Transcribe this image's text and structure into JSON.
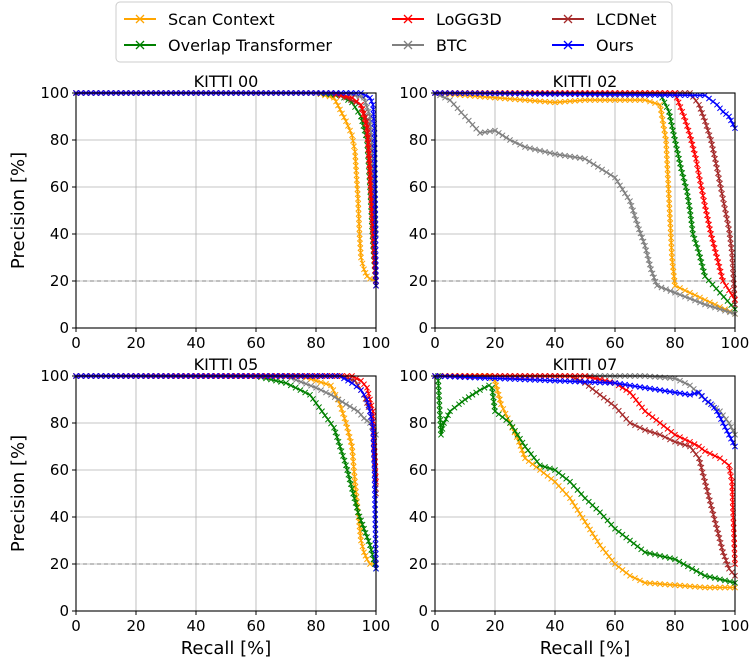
{
  "legend": [
    {
      "name": "Scan Context",
      "color": "#ffa500"
    },
    {
      "name": "Overlap Transformer",
      "color": "#008000"
    },
    {
      "name": "LoGG3D",
      "color": "#ff0000"
    },
    {
      "name": "BTC",
      "color": "#808080"
    },
    {
      "name": "LCDNet",
      "color": "#a52a2a"
    },
    {
      "name": "Ours",
      "color": "#0000ff"
    }
  ],
  "chart_data": [
    {
      "type": "line",
      "title": "KITTI 00",
      "xlabel": "",
      "ylabel": "Precision [%]",
      "xlim": [
        0,
        100
      ],
      "ylim": [
        0,
        100
      ],
      "xticks": [
        "0",
        "20",
        "40",
        "60",
        "80",
        "100"
      ],
      "yticks": [
        "0",
        "20",
        "40",
        "60",
        "80",
        "100"
      ],
      "grid": true,
      "series": [
        {
          "name": "Scan Context",
          "x": [
            0,
            80,
            86,
            88,
            90,
            92,
            93,
            93.5,
            94,
            94.5,
            95,
            96,
            97,
            98,
            100
          ],
          "y": [
            100,
            100,
            98,
            93,
            88,
            82,
            75,
            65,
            55,
            40,
            30,
            25,
            22,
            21,
            20
          ]
        },
        {
          "name": "Overlap Transformer",
          "x": [
            0,
            80,
            88,
            92,
            95,
            97,
            98,
            99,
            100
          ],
          "y": [
            100,
            100,
            99,
            96,
            90,
            80,
            60,
            35,
            18
          ]
        },
        {
          "name": "LoGG3D",
          "x": [
            0,
            85,
            92,
            95,
            97,
            98,
            99,
            100
          ],
          "y": [
            100,
            100,
            98,
            95,
            85,
            65,
            40,
            18
          ]
        },
        {
          "name": "BTC",
          "x": [
            0,
            90,
            96,
            98,
            99,
            100
          ],
          "y": [
            100,
            100,
            98,
            90,
            70,
            40
          ]
        },
        {
          "name": "LCDNet",
          "x": [
            0,
            85,
            90,
            95,
            97,
            98,
            99,
            100
          ],
          "y": [
            100,
            100,
            98,
            95,
            88,
            70,
            45,
            20
          ]
        },
        {
          "name": "Ours",
          "x": [
            0,
            95,
            98,
            99,
            99.5,
            100
          ],
          "y": [
            100,
            100,
            98,
            95,
            85,
            18
          ]
        }
      ]
    },
    {
      "type": "line",
      "title": "KITTI 02",
      "xlabel": "",
      "ylabel": "",
      "xlim": [
        0,
        100
      ],
      "ylim": [
        0,
        100
      ],
      "xticks": [
        "0",
        "20",
        "40",
        "60",
        "80",
        "100"
      ],
      "yticks": [
        "0",
        "20",
        "40",
        "60",
        "80",
        "100"
      ],
      "grid": true,
      "series": [
        {
          "name": "Scan Context",
          "x": [
            0,
            10,
            20,
            30,
            40,
            50,
            60,
            70,
            75,
            77,
            78,
            79,
            80,
            85,
            90,
            95,
            100
          ],
          "y": [
            100,
            99,
            98,
            97,
            96,
            97,
            97,
            97,
            95,
            80,
            55,
            30,
            18,
            15,
            12,
            9,
            6
          ]
        },
        {
          "name": "Overlap Transformer",
          "x": [
            0,
            75,
            78,
            80,
            82,
            84,
            85,
            86,
            88,
            90,
            95,
            100
          ],
          "y": [
            100,
            100,
            92,
            80,
            68,
            58,
            50,
            40,
            32,
            22,
            15,
            8
          ]
        },
        {
          "name": "LoGG3D",
          "x": [
            0,
            80,
            83,
            85,
            87,
            88,
            90,
            92,
            94,
            96,
            100
          ],
          "y": [
            100,
            100,
            90,
            82,
            72,
            65,
            52,
            40,
            30,
            20,
            12
          ]
        },
        {
          "name": "BTC",
          "x": [
            0,
            5,
            10,
            15,
            20,
            25,
            30,
            40,
            50,
            60,
            65,
            68,
            70,
            72,
            74,
            80,
            90,
            100
          ],
          "y": [
            100,
            97,
            90,
            83,
            84,
            80,
            77,
            74,
            72,
            64,
            54,
            42,
            35,
            25,
            18,
            15,
            10,
            6
          ]
        },
        {
          "name": "LCDNet",
          "x": [
            0,
            85,
            88,
            90,
            92,
            94,
            96,
            98,
            99,
            100
          ],
          "y": [
            100,
            100,
            95,
            88,
            80,
            68,
            55,
            42,
            32,
            10
          ]
        },
        {
          "name": "Ours",
          "x": [
            0,
            90,
            94,
            96,
            98,
            100
          ],
          "y": [
            100,
            99,
            95,
            92,
            90,
            85
          ]
        }
      ]
    },
    {
      "type": "line",
      "title": "KITTI 05",
      "xlabel": "Recall [%]",
      "ylabel": "Precision [%]",
      "xlim": [
        0,
        100
      ],
      "ylim": [
        0,
        100
      ],
      "xticks": [
        "0",
        "20",
        "40",
        "60",
        "80",
        "100"
      ],
      "yticks": [
        "0",
        "20",
        "40",
        "60",
        "80",
        "100"
      ],
      "grid": true,
      "series": [
        {
          "name": "Scan Context",
          "x": [
            0,
            75,
            85,
            88,
            90,
            92,
            93,
            94,
            95,
            96,
            97,
            98,
            100
          ],
          "y": [
            100,
            100,
            96,
            88,
            80,
            70,
            55,
            42,
            30,
            25,
            22,
            20,
            20
          ]
        },
        {
          "name": "Overlap Transformer",
          "x": [
            0,
            60,
            70,
            78,
            82,
            86,
            88,
            90,
            92,
            94,
            96,
            98,
            100
          ],
          "y": [
            100,
            100,
            97,
            92,
            85,
            78,
            70,
            62,
            52,
            42,
            35,
            28,
            18
          ]
        },
        {
          "name": "LoGG3D",
          "x": [
            0,
            92,
            95,
            97,
            98,
            99,
            100
          ],
          "y": [
            100,
            100,
            98,
            95,
            90,
            85,
            55
          ]
        },
        {
          "name": "BTC",
          "x": [
            0,
            70,
            80,
            85,
            90,
            94,
            96,
            98,
            100
          ],
          "y": [
            100,
            100,
            95,
            92,
            88,
            85,
            82,
            80,
            75
          ]
        },
        {
          "name": "LCDNet",
          "x": [
            0,
            88,
            93,
            96,
            98,
            99,
            100
          ],
          "y": [
            100,
            100,
            98,
            92,
            85,
            78,
            50
          ]
        },
        {
          "name": "Ours",
          "x": [
            0,
            88,
            92,
            95,
            97,
            98,
            99,
            99.5,
            100
          ],
          "y": [
            100,
            100,
            97,
            94,
            90,
            85,
            78,
            60,
            18
          ]
        }
      ]
    },
    {
      "type": "line",
      "title": "KITTI 07",
      "xlabel": "Recall [%]",
      "ylabel": "",
      "xlim": [
        0,
        100
      ],
      "ylim": [
        0,
        100
      ],
      "xticks": [
        "0",
        "20",
        "40",
        "60",
        "80",
        "100"
      ],
      "yticks": [
        "0",
        "20",
        "40",
        "60",
        "80",
        "100"
      ],
      "grid": true,
      "series": [
        {
          "name": "Scan Context",
          "x": [
            0,
            18,
            20,
            22,
            25,
            28,
            30,
            35,
            40,
            45,
            50,
            55,
            60,
            65,
            70,
            80,
            90,
            100
          ],
          "y": [
            100,
            100,
            98,
            88,
            80,
            72,
            65,
            60,
            55,
            48,
            38,
            28,
            20,
            15,
            12,
            11,
            10,
            10
          ]
        },
        {
          "name": "Overlap Transformer",
          "x": [
            1,
            2,
            3,
            5,
            8,
            10,
            15,
            18,
            19,
            20,
            25,
            30,
            35,
            40,
            45,
            50,
            55,
            60,
            65,
            70,
            80,
            90,
            100
          ],
          "y": [
            100,
            75,
            80,
            85,
            88,
            90,
            94,
            96,
            95,
            85,
            80,
            70,
            62,
            60,
            55,
            48,
            42,
            35,
            30,
            25,
            22,
            15,
            12
          ]
        },
        {
          "name": "LoGG3D",
          "x": [
            0,
            50,
            60,
            65,
            70,
            75,
            80,
            85,
            88,
            90,
            95,
            98,
            99,
            100
          ],
          "y": [
            100,
            100,
            97,
            93,
            85,
            80,
            75,
            72,
            70,
            68,
            65,
            62,
            55,
            20
          ]
        },
        {
          "name": "BTC",
          "x": [
            0,
            70,
            80,
            85,
            90,
            95,
            98,
            100
          ],
          "y": [
            100,
            100,
            99,
            96,
            90,
            85,
            80,
            75
          ]
        },
        {
          "name": "LCDNet",
          "x": [
            0,
            45,
            50,
            55,
            60,
            65,
            70,
            75,
            80,
            85,
            88,
            90,
            92,
            94,
            96,
            98,
            100
          ],
          "y": [
            100,
            100,
            97,
            92,
            87,
            80,
            77,
            75,
            72,
            70,
            65,
            55,
            45,
            35,
            25,
            18,
            15
          ]
        },
        {
          "name": "Ours",
          "x": [
            0,
            60,
            70,
            80,
            85,
            88,
            90,
            92,
            94,
            96,
            98,
            100
          ],
          "y": [
            100,
            97,
            95,
            93,
            92,
            93,
            90,
            88,
            85,
            80,
            75,
            70
          ]
        }
      ]
    }
  ]
}
